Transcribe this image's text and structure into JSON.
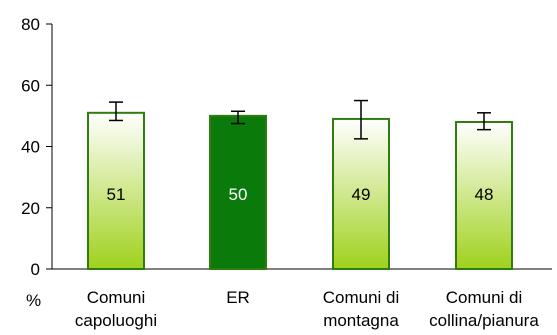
{
  "chart_data": {
    "type": "bar",
    "categories": [
      [
        "Comuni",
        "capoluoghi"
      ],
      [
        "ER"
      ],
      [
        "Comuni di",
        "montagna"
      ],
      [
        "Comuni di",
        "collina/pianura"
      ]
    ],
    "values": [
      51,
      50,
      49,
      48
    ],
    "data_labels": [
      "51",
      "50",
      "49",
      "48"
    ],
    "error_bars": [
      {
        "low": 48.5,
        "high": 54.5
      },
      {
        "low": 47.5,
        "high": 51.5
      },
      {
        "low": 42.5,
        "high": 55
      },
      {
        "low": 45.5,
        "high": 51
      }
    ],
    "highlight_index": 1,
    "ylim": [
      0,
      80
    ],
    "yticks": [
      "0",
      "20",
      "40",
      "60",
      "80"
    ],
    "ylabel": "%",
    "grid": false,
    "legend": "none",
    "colors": {
      "bar_outline": "#2e7d0e",
      "gradient_top": "#ffffff",
      "gradient_bottom": "#9fd11c",
      "highlight_fill": "#0a7a0a",
      "label_dark": "#000000",
      "label_light": "#ffffff",
      "axis": "#000000"
    }
  }
}
